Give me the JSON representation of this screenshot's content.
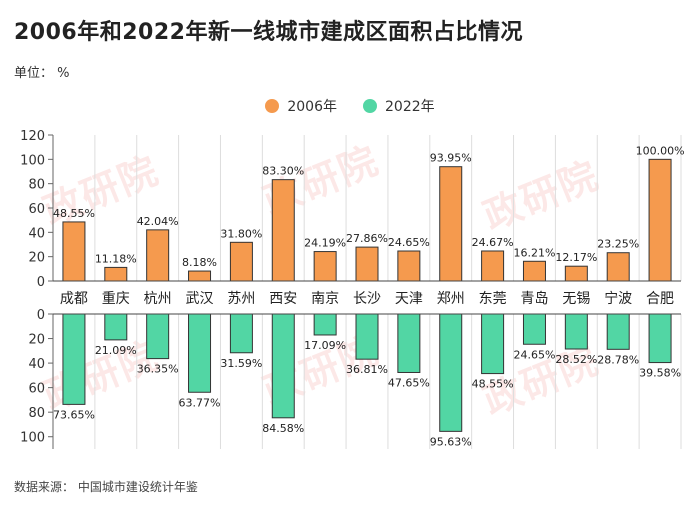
{
  "title": "2006年和2022年新一线城市建成区面积占比情况",
  "unit": "单位： %",
  "source": "数据来源： 中国城市建设统计年鉴",
  "watermark": "政研院",
  "colors": {
    "s2006": "#F59A4E",
    "s2022": "#52D6A4",
    "stroke": "#333333",
    "grid": "#dddddd"
  },
  "chart_data": {
    "type": "bar",
    "categories": [
      "成都",
      "重庆",
      "杭州",
      "武汉",
      "苏州",
      "西安",
      "南京",
      "长沙",
      "天津",
      "郑州",
      "东莞",
      "青岛",
      "无锡",
      "宁波",
      "合肥"
    ],
    "series": [
      {
        "name": "2006年",
        "values": [
          48.55,
          11.18,
          42.04,
          8.18,
          31.8,
          83.3,
          24.19,
          27.86,
          24.65,
          93.95,
          24.67,
          16.21,
          12.17,
          23.25,
          100.0
        ],
        "labels": [
          "48.55%",
          "11.18%",
          "42.04%",
          "8.18%",
          "31.80%",
          "83.30%",
          "24.19%",
          "27.86%",
          "24.65%",
          "93.95%",
          "24.67%",
          "16.21%",
          "12.17%",
          "23.25%",
          "100.00%"
        ]
      },
      {
        "name": "2022年",
        "values": [
          73.65,
          21.09,
          36.35,
          63.77,
          31.59,
          84.58,
          17.09,
          36.81,
          47.65,
          95.63,
          48.55,
          24.65,
          28.52,
          28.78,
          39.58
        ],
        "labels": [
          "73.65%",
          "21.09%",
          "36.35%",
          "63.77%",
          "31.59%",
          "84.58%",
          "17.09%",
          "36.81%",
          "47.65%",
          "95.63%",
          "48.55%",
          "24.65%",
          "28.52%",
          "28.78%",
          "39.58%"
        ]
      }
    ],
    "yticks_top": [
      "0",
      "20",
      "40",
      "60",
      "80",
      "100",
      "120"
    ],
    "yticks_bottom": [
      "0",
      "20",
      "40",
      "60",
      "80",
      "100"
    ],
    "ylim_top": [
      0,
      120
    ],
    "ylim_bottom": [
      0,
      110
    ],
    "grid": true,
    "legend": "top-center"
  }
}
